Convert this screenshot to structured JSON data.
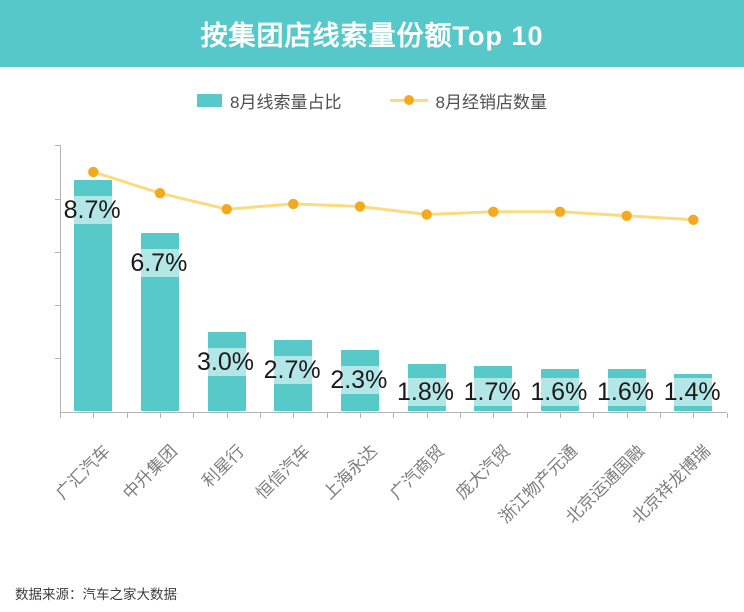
{
  "header": {
    "title": "按集团店线索量份额Top 10"
  },
  "legend": [
    {
      "label": "8月线索量占比",
      "marker": "bar-swatch"
    },
    {
      "label": "8月经销店数量",
      "marker": "line-dot"
    }
  ],
  "footer": {
    "source": "数据来源：汽车之家大数据"
  },
  "colors": {
    "banner": "#56c8ca",
    "bar": "#57c9c9",
    "line": "#fadc7f",
    "dot": "#f5a91f",
    "axis": "#b3b3b3",
    "value_label": "#1a1a1a",
    "category_label": "#7d7d7d",
    "legend_text": "#4f4f4f",
    "footer_text": "#3d3d3d"
  },
  "chart_data": {
    "type": "bar",
    "combo": "bar+line",
    "title": "按集团店线索量份额Top 10",
    "categories": [
      "广汇汽车",
      "中升集团",
      "利星行",
      "恒信汽车",
      "上海永达",
      "广汽商贸",
      "庞大汽贸",
      "浙江物产元通",
      "北京运通国融",
      "北京祥龙博瑞"
    ],
    "series": [
      {
        "name": "8月线索量占比",
        "type": "bar",
        "unit": "%",
        "values": [
          8.7,
          6.7,
          3.0,
          2.7,
          2.3,
          1.8,
          1.7,
          1.6,
          1.6,
          1.4
        ],
        "data_labels": [
          "8.7%",
          "6.7%",
          "3.0%",
          "2.7%",
          "2.3%",
          "1.8%",
          "1.7%",
          "1.6%",
          "1.6%",
          "1.4%"
        ]
      },
      {
        "name": "8月经销店数量",
        "type": "line",
        "values_axis_estimate": [
          9.0,
          8.2,
          7.6,
          7.8,
          7.7,
          7.4,
          7.5,
          7.5,
          7.35,
          7.2
        ]
      }
    ],
    "ylim": [
      0,
      10
    ],
    "y_tick_step": 2,
    "y_axis_labels_visible": false,
    "grid": false,
    "legend_position": "top",
    "xlabel": "",
    "ylabel": ""
  }
}
